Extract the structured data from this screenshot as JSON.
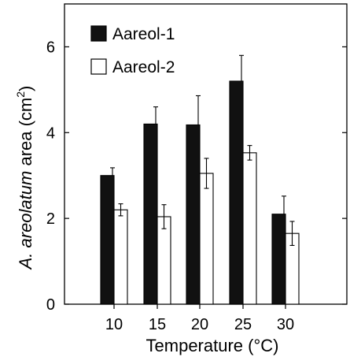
{
  "chart_data": {
    "type": "bar",
    "xlabel": "Temperature (°C)",
    "ylabel_italic": "A. areolatum",
    "ylabel_rest": " area (cm",
    "ylabel_sup": "2",
    "ylabel_close": ")",
    "ylim": [
      0,
      7
    ],
    "yticks": [
      0,
      2,
      4,
      6
    ],
    "categories": [
      "10",
      "15",
      "20",
      "25",
      "30"
    ],
    "series": [
      {
        "name": "Aareol-1",
        "fill": "#111111",
        "values": [
          3.0,
          4.2,
          4.18,
          5.2,
          2.1
        ],
        "errors": [
          0.18,
          0.4,
          0.68,
          0.6,
          0.42
        ]
      },
      {
        "name": "Aareol-2",
        "fill": "#ffffff",
        "values": [
          2.2,
          2.04,
          3.05,
          3.53,
          1.65
        ],
        "errors": [
          0.14,
          0.28,
          0.35,
          0.17,
          0.28
        ]
      }
    ],
    "legend_position": "top-left",
    "grid": false,
    "error_bars": true
  }
}
